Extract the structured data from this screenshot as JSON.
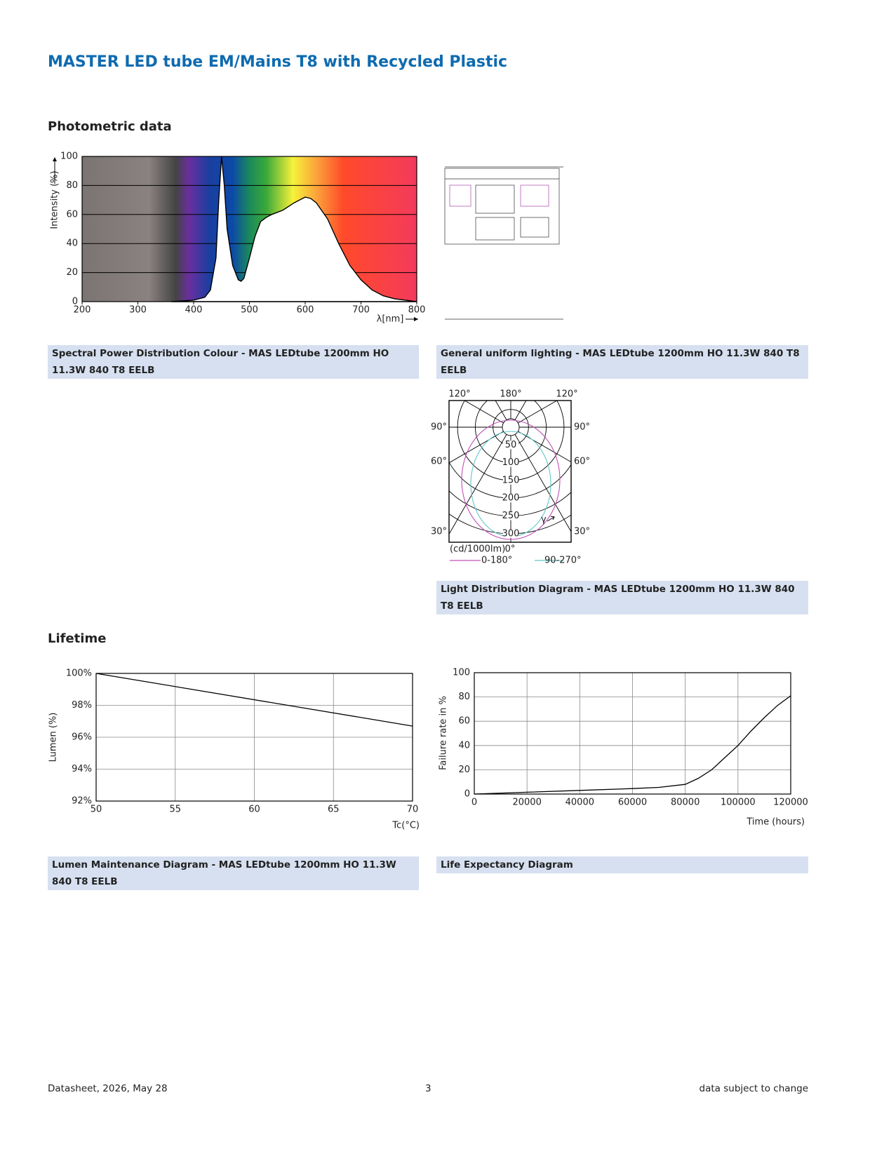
{
  "header": {
    "title": "MASTER LED tube EM/Mains T8 with Recycled Plastic"
  },
  "sections": [
    "Photometric data",
    "Lifetime"
  ],
  "chart_data": [
    {
      "type": "area",
      "x_label": "λ[nm]",
      "y_label": "Intensity (%)",
      "x": [
        360,
        380,
        400,
        420,
        430,
        440,
        445,
        450,
        455,
        460,
        470,
        480,
        485,
        490,
        500,
        510,
        520,
        530,
        540,
        560,
        580,
        600,
        610,
        620,
        640,
        660,
        680,
        700,
        720,
        740,
        760,
        780,
        800
      ],
      "values": [
        0,
        0.5,
        1,
        3,
        8,
        30,
        70,
        100,
        80,
        50,
        25,
        15,
        14,
        16,
        30,
        45,
        55,
        58,
        60,
        63,
        68,
        72,
        71,
        68,
        57,
        40,
        25,
        15,
        8,
        4,
        2,
        1,
        0
      ],
      "color": "#ffffff",
      "xlim": [
        200,
        800
      ],
      "ylim": [
        0,
        100
      ],
      "xticks": [
        200,
        300,
        400,
        500,
        600,
        700,
        800
      ],
      "yticks": [
        0,
        20,
        40,
        60,
        80,
        100
      ],
      "grid": "y"
    },
    {
      "type": "line",
      "x_label": "Tc(°C)",
      "y_label": "Lumen (%)",
      "x": [
        50,
        70
      ],
      "values": [
        100,
        96.7
      ],
      "color": "#000000",
      "xlim": [
        50,
        70
      ],
      "ylim": [
        92,
        100
      ],
      "xticks": [
        50,
        55,
        60,
        65,
        70
      ],
      "yticks": [
        {
          "value": 92,
          "label": "92%"
        },
        {
          "value": 94,
          "label": "94%"
        },
        {
          "value": 96,
          "label": "96%"
        },
        {
          "value": 98,
          "label": "98%"
        },
        {
          "value": 100,
          "label": "100%"
        }
      ],
      "grid": "both"
    },
    {
      "type": "line",
      "x_label": "Time (hours)",
      "y_label": "Failure rate in %",
      "x": [
        0,
        20000,
        40000,
        60000,
        70000,
        80000,
        85000,
        90000,
        95000,
        100000,
        105000,
        110000,
        115000,
        120000
      ],
      "values": [
        0,
        1.5,
        3,
        4.5,
        5.5,
        8,
        13,
        20,
        30,
        40,
        52,
        63,
        73,
        81
      ],
      "color": "#000000",
      "xlim": [
        0,
        120000
      ],
      "ylim": [
        0,
        100
      ],
      "xticks": [
        0,
        20000,
        40000,
        60000,
        80000,
        100000,
        120000
      ],
      "yticks": [
        0,
        20,
        40,
        60,
        80,
        100
      ],
      "grid": "both"
    }
  ],
  "light_distribution": {
    "angle_labels": [
      "120°",
      "180°",
      "120°",
      "90°",
      "90°",
      "60°",
      "60°",
      "30°",
      "30°",
      "0°"
    ],
    "ring_labels": [
      "50",
      "100",
      "150",
      "200",
      "250",
      "300"
    ],
    "unit": "(cd/1000lm)",
    "gamma_label": "γ",
    "legend": [
      "0-180°",
      "90-270°"
    ]
  },
  "captions": [
    "Spectral Power Distribution Colour - MAS LEDtube 1200mm HO 11.3W 840 T8 EELB",
    "General uniform lighting - MAS LEDtube 1200mm HO 11.3W 840 T8 EELB",
    "Light Distribution Diagram - MAS LEDtube 1200mm HO 11.3W 840 T8 EELB",
    "Lumen Maintenance Diagram - MAS LEDtube 1200mm HO 11.3W 840 T8 EELB",
    "Life Expectancy Diagram"
  ],
  "footer": {
    "left": "Datasheet, 2026, May 28",
    "center": "3",
    "right": "data subject to change"
  }
}
